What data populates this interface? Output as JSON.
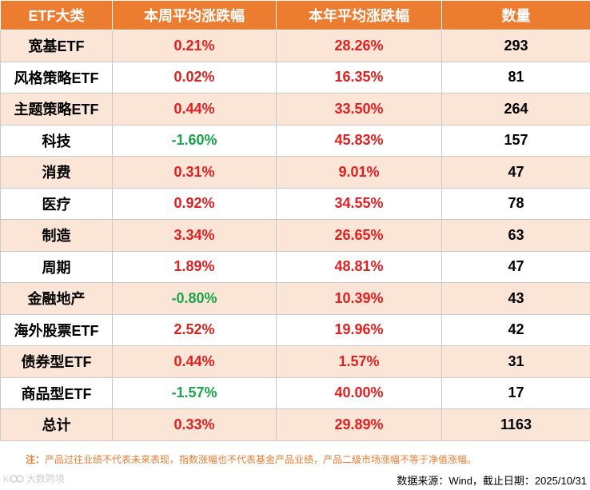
{
  "table": {
    "headers": [
      "ETF大类",
      "本周平均涨跌幅",
      "本年平均涨跌幅",
      "数量"
    ],
    "rows": [
      {
        "category": "宽基ETF",
        "week": "0.21%",
        "week_sign": "pos",
        "year": "28.26%",
        "count": "293"
      },
      {
        "category": "风格策略ETF",
        "week": "0.02%",
        "week_sign": "pos",
        "year": "16.35%",
        "count": "81"
      },
      {
        "category": "主题策略ETF",
        "week": "0.44%",
        "week_sign": "pos",
        "year": "33.50%",
        "count": "264"
      },
      {
        "category": "科技",
        "week": "-1.60%",
        "week_sign": "neg",
        "year": "45.83%",
        "count": "157"
      },
      {
        "category": "消费",
        "week": "0.31%",
        "week_sign": "pos",
        "year": "9.01%",
        "count": "47"
      },
      {
        "category": "医疗",
        "week": "0.92%",
        "week_sign": "pos",
        "year": "34.55%",
        "count": "78"
      },
      {
        "category": "制造",
        "week": "3.34%",
        "week_sign": "pos",
        "year": "26.65%",
        "count": "63"
      },
      {
        "category": "周期",
        "week": "1.89%",
        "week_sign": "pos",
        "year": "48.81%",
        "count": "47"
      },
      {
        "category": "金融地产",
        "week": "-0.80%",
        "week_sign": "neg",
        "year": "10.39%",
        "count": "43"
      },
      {
        "category": "海外股票ETF",
        "week": "2.52%",
        "week_sign": "pos",
        "year": "19.96%",
        "count": "42"
      },
      {
        "category": "债券型ETF",
        "week": "0.44%",
        "week_sign": "pos",
        "year": "1.57%",
        "count": "31"
      },
      {
        "category": "商品型ETF",
        "week": "-1.57%",
        "week_sign": "neg",
        "year": "40.00%",
        "count": "17"
      }
    ],
    "total": {
      "category": "总计",
      "week": "0.33%",
      "year": "29.89%",
      "count": "1163"
    }
  },
  "note": {
    "label": "注：",
    "text": "产品过往业绩不代表未来表现，指数涨幅也不代表基金产品业绩，产品二级市场涨幅不等于净值涨幅。"
  },
  "source": "数据来源：Wind，截止日期：2025/10/31",
  "watermark": {
    "icon": "logo-icon",
    "text": "大数跨境"
  },
  "colors": {
    "header_bg": "#ec7c30",
    "stripe": "#fbe5d6",
    "positive": "#e02020",
    "negative": "#1aa34a"
  }
}
